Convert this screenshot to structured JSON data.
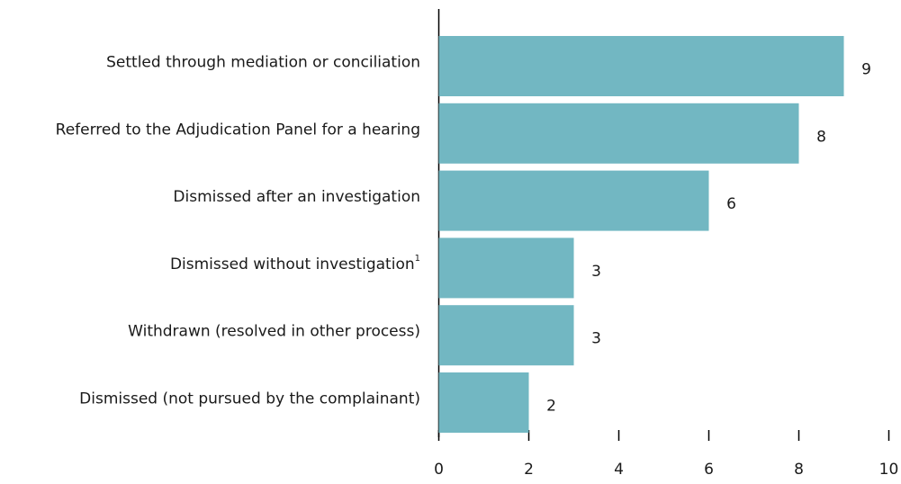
{
  "chart_data": {
    "type": "hbar",
    "categories": [
      "Settled through mediation or conciliation",
      "Referred to the Adjudication Panel for a hearing",
      "Dismissed after an investigation",
      "Dismissed without investigation",
      "Withdrawn (resolved in other process)",
      "Dismissed (not pursued by the complainant)"
    ],
    "footnote_markers": [
      null,
      null,
      null,
      "1",
      null,
      null
    ],
    "values": [
      9,
      8,
      6,
      3,
      3,
      2
    ],
    "color": "#72b7c2",
    "xlim": [
      0,
      10
    ],
    "xticks": [
      0,
      2,
      4,
      6,
      8,
      10
    ]
  }
}
